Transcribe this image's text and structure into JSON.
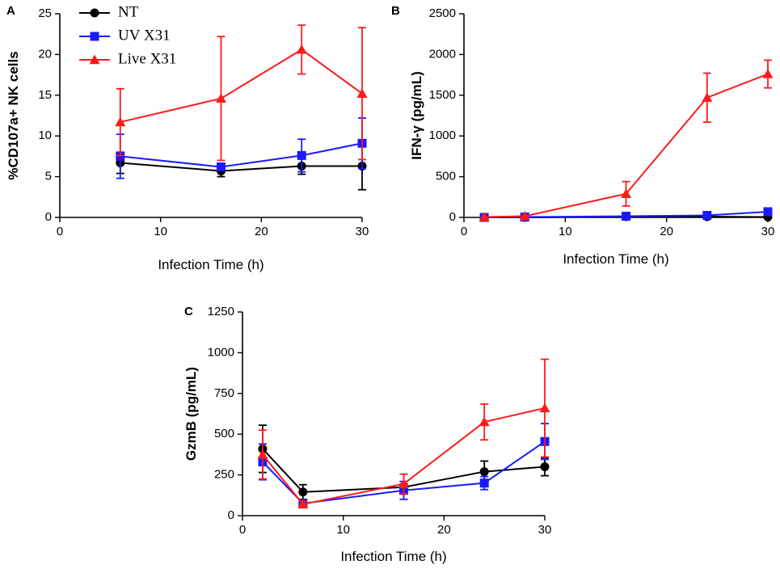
{
  "chart_data": [
    {
      "panel": "A",
      "type": "line",
      "xlabel": "Infection Time (h)",
      "ylabel": "%CD107a+ NK cells",
      "xlim": [
        0,
        30
      ],
      "ylim": [
        0,
        25
      ],
      "xticks": [
        0,
        10,
        20,
        30
      ],
      "yticks": [
        0,
        5,
        10,
        15,
        20,
        25
      ],
      "legend_position": "top-left",
      "series": [
        {
          "name": "NT",
          "color": "#000000",
          "marker": "circle",
          "x": [
            6,
            16,
            24,
            30
          ],
          "values": [
            6.7,
            5.7,
            6.3,
            6.3
          ],
          "errors": [
            1.3,
            0.7,
            1.0,
            2.9
          ]
        },
        {
          "name": "UV X31",
          "color": "#1a1aff",
          "marker": "square",
          "x": [
            6,
            16,
            24,
            30
          ],
          "values": [
            7.5,
            6.2,
            7.6,
            9.1
          ],
          "errors": [
            2.7,
            0.2,
            2.0,
            3.1
          ]
        },
        {
          "name": "Live X31",
          "color": "#ff1a1a",
          "marker": "triangle",
          "x": [
            6,
            16,
            24,
            30
          ],
          "values": [
            11.7,
            14.6,
            20.6,
            15.2
          ],
          "errors": [
            4.1,
            7.6,
            3.0,
            8.1
          ]
        }
      ]
    },
    {
      "panel": "B",
      "type": "line",
      "xlabel": "Infection Time (h)",
      "ylabel": "IFN-γ (pg/mL)",
      "xlim": [
        0,
        30
      ],
      "ylim": [
        0,
        2500
      ],
      "xticks": [
        0,
        10,
        20,
        30
      ],
      "yticks": [
        0,
        500,
        1000,
        1500,
        2000,
        2500
      ],
      "series": [
        {
          "name": "NT",
          "color": "#000000",
          "marker": "circle",
          "x": [
            2,
            6,
            16,
            24,
            30
          ],
          "values": [
            0,
            0,
            10,
            10,
            5
          ],
          "errors": [
            0,
            0,
            0,
            0,
            0
          ]
        },
        {
          "name": "UV X31",
          "color": "#1a1aff",
          "marker": "square",
          "x": [
            2,
            6,
            16,
            24,
            30
          ],
          "values": [
            0,
            5,
            15,
            25,
            70
          ],
          "errors": [
            0,
            0,
            0,
            0,
            0
          ]
        },
        {
          "name": "Live X31",
          "color": "#ff1a1a",
          "marker": "triangle",
          "x": [
            2,
            6,
            16,
            24,
            30
          ],
          "values": [
            5,
            15,
            290,
            1470,
            1760
          ],
          "errors": [
            0,
            0,
            150,
            300,
            170
          ]
        }
      ]
    },
    {
      "panel": "C",
      "type": "line",
      "xlabel": "Infection Time (h)",
      "ylabel": "GzmB (pg/mL)",
      "xlim": [
        0,
        30
      ],
      "ylim": [
        0,
        1250
      ],
      "xticks": [
        0,
        10,
        20,
        30
      ],
      "yticks": [
        0,
        250,
        500,
        750,
        1000,
        1250
      ],
      "series": [
        {
          "name": "NT",
          "color": "#000000",
          "marker": "circle",
          "x": [
            2,
            6,
            16,
            24,
            30
          ],
          "values": [
            410,
            145,
            175,
            270,
            300
          ],
          "errors": [
            145,
            45,
            20,
            65,
            55
          ]
        },
        {
          "name": "UV X31",
          "color": "#1a1aff",
          "marker": "square",
          "x": [
            2,
            6,
            16,
            24,
            30
          ],
          "values": [
            330,
            75,
            155,
            200,
            455
          ],
          "errors": [
            110,
            20,
            55,
            40,
            110
          ]
        },
        {
          "name": "Live X31",
          "color": "#ff1a1a",
          "marker": "triangle",
          "x": [
            2,
            6,
            16,
            24,
            30
          ],
          "values": [
            375,
            70,
            195,
            575,
            660
          ],
          "errors": [
            150,
            20,
            60,
            110,
            300
          ]
        }
      ]
    }
  ]
}
